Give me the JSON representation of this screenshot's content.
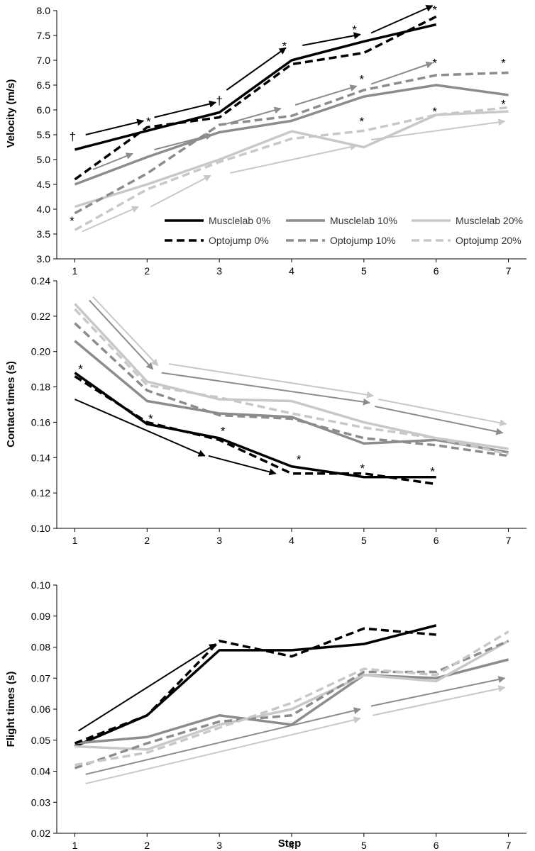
{
  "chart_data": [
    {
      "type": "line",
      "ylabel": "Velocity (m/s)",
      "xlabel": "",
      "x": [
        1,
        2,
        3,
        4,
        5,
        6,
        7
      ],
      "xlim": [
        0.75,
        7.25
      ],
      "ylim": [
        3.0,
        8.0
      ],
      "yticks": [
        3.0,
        3.5,
        4.0,
        4.5,
        5.0,
        5.5,
        6.0,
        6.5,
        7.0,
        7.5,
        8.0
      ],
      "ytick_labels": [
        "3.0",
        "3.5",
        "4.0",
        "4.5",
        "5.0",
        "5.5",
        "6.0",
        "6.5",
        "7.0",
        "7.5",
        "8.0"
      ],
      "xtick_labels": [
        "1",
        "2",
        "3",
        "4",
        "5",
        "6",
        "7"
      ],
      "grid": false,
      "legend_position": "bottom-right",
      "series": [
        {
          "name": "Musclelab 0%",
          "color": "#000000",
          "dash": "solid",
          "values": [
            5.2,
            5.58,
            5.95,
            7.0,
            7.38,
            7.72,
            null
          ]
        },
        {
          "name": "Musclelab 10%",
          "color": "#8c8c8c",
          "dash": "solid",
          "values": [
            4.5,
            5.05,
            5.55,
            5.78,
            6.27,
            6.5,
            6.3
          ]
        },
        {
          "name": "Musclelab 20%",
          "color": "#c8c8c8",
          "dash": "solid",
          "values": [
            4.05,
            4.5,
            5.0,
            5.57,
            5.25,
            5.9,
            5.97
          ]
        },
        {
          "name": "Optojump 0%",
          "color": "#000000",
          "dash": "dashed",
          "values": [
            4.6,
            5.65,
            5.85,
            6.92,
            7.15,
            7.88,
            null
          ]
        },
        {
          "name": "Optojump 10%",
          "color": "#8c8c8c",
          "dash": "dashed",
          "values": [
            3.92,
            4.72,
            5.7,
            5.88,
            6.4,
            6.7,
            6.75
          ]
        },
        {
          "name": "Optojump 20%",
          "color": "#c8c8c8",
          "dash": "dashed",
          "values": [
            3.58,
            4.4,
            4.95,
            5.42,
            5.58,
            5.9,
            6.05
          ]
        }
      ],
      "trend_arrows": [
        {
          "color": "#000000",
          "x1": 1.15,
          "y1": 5.5,
          "x2": 1.95,
          "y2": 5.78
        },
        {
          "color": "#000000",
          "x1": 2.1,
          "y1": 5.85,
          "x2": 2.95,
          "y2": 6.15
        },
        {
          "color": "#000000",
          "x1": 3.1,
          "y1": 6.4,
          "x2": 3.92,
          "y2": 7.25
        },
        {
          "color": "#000000",
          "x1": 4.15,
          "y1": 7.3,
          "x2": 4.95,
          "y2": 7.52
        },
        {
          "color": "#000000",
          "x1": 5.1,
          "y1": 7.55,
          "x2": 5.95,
          "y2": 8.1
        },
        {
          "color": "#8c8c8c",
          "x1": 1.25,
          "y1": 4.8,
          "x2": 1.8,
          "y2": 5.12
        },
        {
          "color": "#8c8c8c",
          "x1": 2.1,
          "y1": 5.2,
          "x2": 2.9,
          "y2": 5.5
        },
        {
          "color": "#8c8c8c",
          "x1": 3.1,
          "y1": 5.72,
          "x2": 3.85,
          "y2": 6.03
        },
        {
          "color": "#8c8c8c",
          "x1": 4.05,
          "y1": 6.1,
          "x2": 4.9,
          "y2": 6.48
        },
        {
          "color": "#8c8c8c",
          "x1": 5.1,
          "y1": 6.52,
          "x2": 5.95,
          "y2": 6.95
        },
        {
          "color": "#c8c8c8",
          "x1": 1.1,
          "y1": 3.55,
          "x2": 1.88,
          "y2": 4.05
        },
        {
          "color": "#c8c8c8",
          "x1": 2.05,
          "y1": 4.05,
          "x2": 2.88,
          "y2": 4.68
        },
        {
          "color": "#c8c8c8",
          "x1": 3.15,
          "y1": 4.73,
          "x2": 4.9,
          "y2": 5.28
        },
        {
          "color": "#c8c8c8",
          "x1": 5.1,
          "y1": 5.4,
          "x2": 6.95,
          "y2": 5.77
        }
      ],
      "annotations": [
        {
          "text": "†",
          "x": 0.97,
          "y": 5.5
        },
        {
          "text": "*",
          "x": 2.02,
          "y": 5.8
        },
        {
          "text": "†",
          "x": 3.0,
          "y": 6.22
        },
        {
          "text": "*",
          "x": 3.9,
          "y": 7.32
        },
        {
          "text": "*",
          "x": 4.87,
          "y": 7.65
        },
        {
          "text": "*",
          "x": 5.98,
          "y": 8.05
        },
        {
          "text": "*",
          "x": 4.97,
          "y": 6.65
        },
        {
          "text": "*",
          "x": 5.98,
          "y": 6.98
        },
        {
          "text": "*",
          "x": 6.93,
          "y": 6.98
        },
        {
          "text": "*",
          "x": 4.97,
          "y": 5.8
        },
        {
          "text": "*",
          "x": 5.98,
          "y": 6.0
        },
        {
          "text": "*",
          "x": 6.93,
          "y": 6.15
        },
        {
          "text": "*",
          "x": 0.96,
          "y": 3.8
        }
      ]
    },
    {
      "type": "line",
      "ylabel": "Contact times (s)",
      "xlabel": "",
      "x": [
        1,
        2,
        3,
        4,
        5,
        6,
        7
      ],
      "xlim": [
        0.75,
        7.25
      ],
      "ylim": [
        0.1,
        0.24
      ],
      "yticks": [
        0.1,
        0.12,
        0.14,
        0.16,
        0.18,
        0.2,
        0.22,
        0.24
      ],
      "ytick_labels": [
        "0.10",
        "0.12",
        "0.14",
        "0.16",
        "0.18",
        "0.20",
        "0.22",
        "0.24"
      ],
      "xtick_labels": [
        "1",
        "2",
        "3",
        "4",
        "5",
        "6",
        "7"
      ],
      "grid": false,
      "series": [
        {
          "name": "Musclelab 0%",
          "color": "#000000",
          "dash": "solid",
          "values": [
            0.188,
            0.159,
            0.151,
            0.135,
            0.129,
            0.129,
            null
          ]
        },
        {
          "name": "Musclelab 10%",
          "color": "#8c8c8c",
          "dash": "solid",
          "values": [
            0.206,
            0.172,
            0.165,
            0.163,
            0.148,
            0.15,
            0.143
          ]
        },
        {
          "name": "Musclelab 20%",
          "color": "#c8c8c8",
          "dash": "solid",
          "values": [
            0.227,
            0.183,
            0.173,
            0.172,
            0.16,
            0.151,
            0.145
          ]
        },
        {
          "name": "Optojump 0%",
          "color": "#000000",
          "dash": "dashed",
          "values": [
            0.186,
            0.16,
            0.15,
            0.131,
            0.131,
            0.125,
            null
          ]
        },
        {
          "name": "Optojump 10%",
          "color": "#8c8c8c",
          "dash": "dashed",
          "values": [
            0.216,
            0.178,
            0.164,
            0.162,
            0.151,
            0.147,
            0.141
          ]
        },
        {
          "name": "Optojump 20%",
          "color": "#c8c8c8",
          "dash": "dashed",
          "values": [
            0.224,
            0.181,
            0.174,
            0.165,
            0.157,
            0.151,
            0.142
          ]
        }
      ],
      "trend_arrows": [
        {
          "color": "#000000",
          "x1": 1.0,
          "y1": 0.173,
          "x2": 2.8,
          "y2": 0.141
        },
        {
          "color": "#000000",
          "x1": 2.85,
          "y1": 0.141,
          "x2": 3.78,
          "y2": 0.131
        },
        {
          "color": "#8c8c8c",
          "x1": 1.2,
          "y1": 0.229,
          "x2": 2.08,
          "y2": 0.19
        },
        {
          "color": "#8c8c8c",
          "x1": 2.2,
          "y1": 0.188,
          "x2": 5.08,
          "y2": 0.171
        },
        {
          "color": "#8c8c8c",
          "x1": 5.15,
          "y1": 0.169,
          "x2": 6.92,
          "y2": 0.154
        },
        {
          "color": "#c8c8c8",
          "x1": 1.25,
          "y1": 0.231,
          "x2": 2.15,
          "y2": 0.192
        },
        {
          "color": "#c8c8c8",
          "x1": 2.3,
          "y1": 0.193,
          "x2": 5.13,
          "y2": 0.175
        },
        {
          "color": "#c8c8c8",
          "x1": 5.2,
          "y1": 0.173,
          "x2": 6.97,
          "y2": 0.159
        }
      ],
      "annotations": [
        {
          "text": "*",
          "x": 1.08,
          "y": 0.191
        },
        {
          "text": "*",
          "x": 2.05,
          "y": 0.163
        },
        {
          "text": "*",
          "x": 3.05,
          "y": 0.156
        },
        {
          "text": "*",
          "x": 4.1,
          "y": 0.14
        },
        {
          "text": "*",
          "x": 4.98,
          "y": 0.135
        },
        {
          "text": "*",
          "x": 5.95,
          "y": 0.133
        }
      ]
    },
    {
      "type": "line",
      "ylabel": "Flight times (s)",
      "xlabel": "Step",
      "x": [
        1,
        2,
        3,
        4,
        5,
        6,
        7
      ],
      "xlim": [
        0.75,
        7.25
      ],
      "ylim": [
        0.02,
        0.1
      ],
      "yticks": [
        0.02,
        0.03,
        0.04,
        0.05,
        0.06,
        0.07,
        0.08,
        0.09,
        0.1
      ],
      "ytick_labels": [
        "0.02",
        "0.03",
        "0.04",
        "0.05",
        "0.06",
        "0.07",
        "0.08",
        "0.09",
        "0.10"
      ],
      "xtick_labels": [
        "1",
        "2",
        "3",
        "4",
        "5",
        "6",
        "7"
      ],
      "grid": false,
      "series": [
        {
          "name": "Musclelab 0%",
          "color": "#000000",
          "dash": "solid",
          "values": [
            0.048,
            0.058,
            0.079,
            0.079,
            0.081,
            0.087,
            null
          ]
        },
        {
          "name": "Musclelab 10%",
          "color": "#8c8c8c",
          "dash": "solid",
          "values": [
            0.049,
            0.051,
            0.058,
            0.055,
            0.071,
            0.07,
            0.076
          ]
        },
        {
          "name": "Musclelab 20%",
          "color": "#c8c8c8",
          "dash": "solid",
          "values": [
            0.048,
            0.047,
            0.055,
            0.06,
            0.071,
            0.069,
            0.082
          ]
        },
        {
          "name": "Optojump 0%",
          "color": "#000000",
          "dash": "dashed",
          "values": [
            0.049,
            0.058,
            0.082,
            0.077,
            0.086,
            0.084,
            null
          ]
        },
        {
          "name": "Optojump 10%",
          "color": "#8c8c8c",
          "dash": "dashed",
          "values": [
            0.041,
            0.049,
            0.056,
            0.058,
            0.072,
            0.072,
            0.082
          ]
        },
        {
          "name": "Optojump 20%",
          "color": "#c8c8c8",
          "dash": "dashed",
          "values": [
            0.042,
            0.046,
            0.054,
            0.062,
            0.073,
            0.071,
            0.085
          ]
        }
      ],
      "trend_arrows": [
        {
          "color": "#000000",
          "x1": 1.05,
          "y1": 0.053,
          "x2": 2.95,
          "y2": 0.081
        },
        {
          "color": "#8c8c8c",
          "x1": 1.15,
          "y1": 0.039,
          "x2": 4.95,
          "y2": 0.06
        },
        {
          "color": "#8c8c8c",
          "x1": 5.1,
          "y1": 0.061,
          "x2": 6.95,
          "y2": 0.07
        },
        {
          "color": "#c8c8c8",
          "x1": 1.15,
          "y1": 0.036,
          "x2": 4.95,
          "y2": 0.057
        },
        {
          "color": "#c8c8c8",
          "x1": 5.12,
          "y1": 0.058,
          "x2": 6.95,
          "y2": 0.067
        }
      ],
      "annotations": []
    }
  ]
}
